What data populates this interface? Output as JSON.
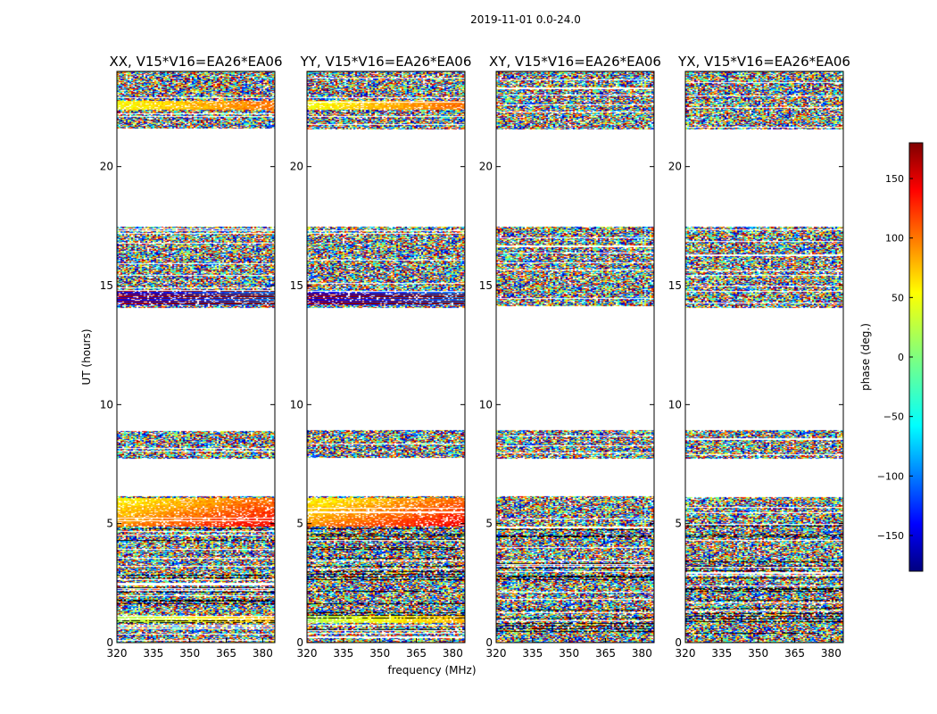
{
  "figure": {
    "suptitle": "2019-11-01 0.0-24.0"
  },
  "chart_data": {
    "type": "heatmap",
    "xlabel": "frequency (MHz)",
    "ylabel": "UT (hours)",
    "xlim": [
      320,
      385
    ],
    "ylim": [
      0,
      24
    ],
    "xticks": [
      320,
      335,
      350,
      365,
      380
    ],
    "yticks": [
      0,
      5,
      10,
      15,
      20
    ],
    "panels": [
      {
        "title": "XX, V15*V16=EA26*EA06",
        "coherent": true
      },
      {
        "title": "YY, V15*V16=EA26*EA06",
        "coherent": true
      },
      {
        "title": "XY, V15*V16=EA26*EA06",
        "coherent": false
      },
      {
        "title": "YX, V15*V16=EA26*EA06",
        "coherent": false
      }
    ],
    "gaps_hours": [
      [
        7.75,
        6.15
      ],
      [
        14.1,
        8.95
      ],
      [
        21.6,
        17.5
      ]
    ],
    "data_range_hours": [
      0,
      24
    ],
    "colorbar": {
      "label": "phase (deg.)",
      "range": [
        -180,
        180
      ],
      "ticks": [
        -150,
        -100,
        -50,
        0,
        50,
        100,
        150
      ],
      "colormap": "jet",
      "ticks_display": [
        "−150",
        "−100",
        "−50",
        "0",
        "50",
        "100",
        "150"
      ]
    }
  }
}
